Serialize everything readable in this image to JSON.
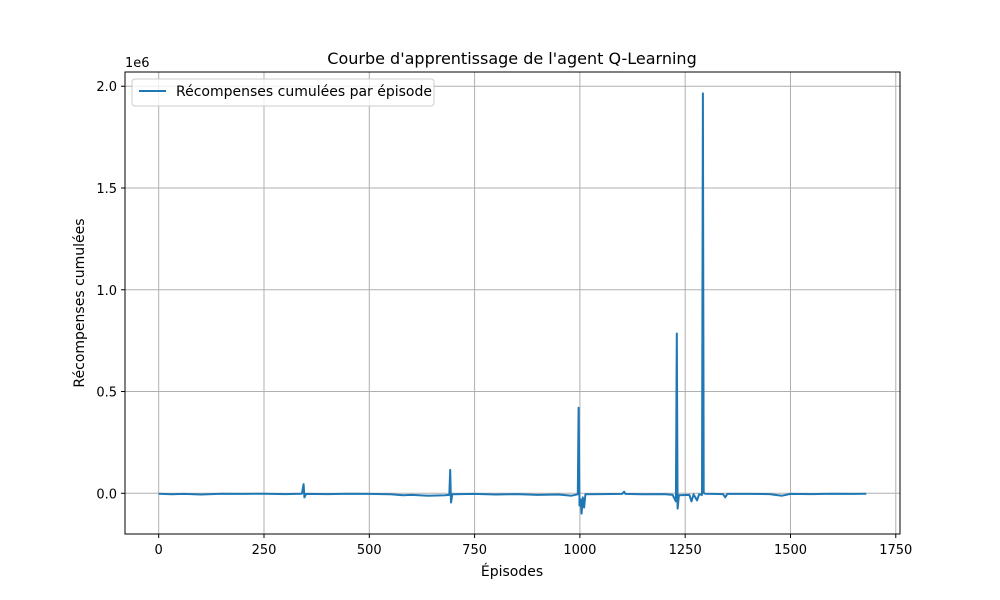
{
  "chart_data": {
    "type": "line",
    "title": "Courbe d'apprentissage de l'agent Q-Learning",
    "xlabel": "Épisodes",
    "ylabel": "Récompenses cumulées",
    "y_scale_label": "1e6",
    "xlim": [
      -80,
      1760
    ],
    "ylim": [
      -200000,
      2070000
    ],
    "x_ticks": [
      0,
      250,
      500,
      750,
      1000,
      1250,
      1500,
      1750
    ],
    "y_ticks": [
      0,
      500000,
      1000000,
      1500000,
      2000000
    ],
    "x_tick_labels": [
      "0",
      "250",
      "500",
      "750",
      "1000",
      "1250",
      "1500",
      "1750"
    ],
    "y_tick_labels": [
      "0.0",
      "0.5",
      "1.0",
      "1.5",
      "2.0"
    ],
    "grid": true,
    "legend_position": "top-left",
    "series": [
      {
        "name": "Récompenses cumulées par épisode",
        "color": "#1f77b4",
        "points": [
          [
            0,
            -2000
          ],
          [
            30,
            -5000
          ],
          [
            60,
            -3000
          ],
          [
            100,
            -6000
          ],
          [
            150,
            -2000
          ],
          [
            200,
            -3000
          ],
          [
            250,
            -2000
          ],
          [
            300,
            -4000
          ],
          [
            340,
            -2000
          ],
          [
            344,
            45000
          ],
          [
            346,
            -20000
          ],
          [
            350,
            -3000
          ],
          [
            400,
            -4000
          ],
          [
            450,
            -2000
          ],
          [
            500,
            -3000
          ],
          [
            550,
            -5000
          ],
          [
            580,
            -10000
          ],
          [
            600,
            -8000
          ],
          [
            640,
            -12000
          ],
          [
            680,
            -10000
          ],
          [
            690,
            -8000
          ],
          [
            692,
            115000
          ],
          [
            694,
            -45000
          ],
          [
            697,
            -5000
          ],
          [
            750,
            -3000
          ],
          [
            800,
            -6000
          ],
          [
            850,
            -4000
          ],
          [
            900,
            -8000
          ],
          [
            950,
            -6000
          ],
          [
            980,
            -12000
          ],
          [
            995,
            -5000
          ],
          [
            997,
            420000
          ],
          [
            999,
            -60000
          ],
          [
            1002,
            -30000
          ],
          [
            1004,
            -100000
          ],
          [
            1007,
            -20000
          ],
          [
            1010,
            -70000
          ],
          [
            1013,
            -5000
          ],
          [
            1050,
            -4000
          ],
          [
            1100,
            -3000
          ],
          [
            1105,
            8000
          ],
          [
            1108,
            -3000
          ],
          [
            1150,
            -5000
          ],
          [
            1200,
            -4000
          ],
          [
            1220,
            -8000
          ],
          [
            1228,
            -40000
          ],
          [
            1230,
            785000
          ],
          [
            1232,
            -75000
          ],
          [
            1235,
            -10000
          ],
          [
            1260,
            -8000
          ],
          [
            1265,
            -40000
          ],
          [
            1270,
            -5000
          ],
          [
            1278,
            -35000
          ],
          [
            1283,
            -5000
          ],
          [
            1290,
            -8000
          ],
          [
            1292,
            1965000
          ],
          [
            1294,
            2000
          ],
          [
            1297,
            -2000
          ],
          [
            1340,
            -4000
          ],
          [
            1345,
            -20000
          ],
          [
            1350,
            -3000
          ],
          [
            1400,
            -3000
          ],
          [
            1450,
            -4000
          ],
          [
            1480,
            -12000
          ],
          [
            1500,
            -3000
          ],
          [
            1550,
            -4000
          ],
          [
            1600,
            -2000
          ],
          [
            1650,
            -3000
          ],
          [
            1680,
            -2000
          ]
        ]
      }
    ]
  }
}
